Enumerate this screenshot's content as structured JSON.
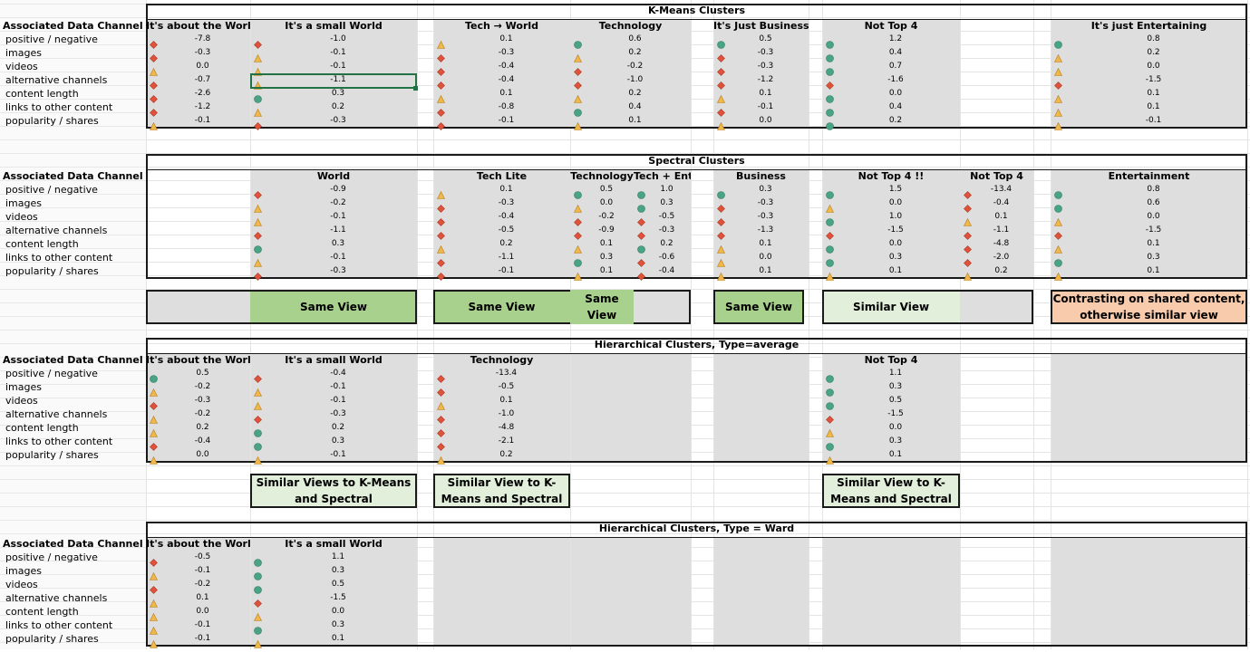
{
  "row_labels": [
    "positive / negative",
    "images",
    "videos",
    "alternative channels",
    "content length",
    "links to other content",
    "popularity / shares"
  ],
  "header_label": "Associated Data Channel",
  "icon_colors": {
    "circle": "#4aa383",
    "diamond": "#e0533a",
    "triangle": "#f0b74a"
  },
  "sections": [
    {
      "id": "kmeans",
      "title": "K-Means Clusters",
      "columns": [
        {
          "id": "k1",
          "header": "It's about the World",
          "icons": [
            "d",
            "d",
            "t",
            "d",
            "d",
            "d",
            "t"
          ],
          "values": [
            "-7.8",
            "-0.3",
            "0.0",
            "-0.7",
            "-2.6",
            "-1.2",
            "-0.1"
          ]
        },
        {
          "id": "k2",
          "header": "It's a small World",
          "icons": [
            "d",
            "t",
            "t",
            "t",
            "c",
            "t",
            "d"
          ],
          "values": [
            "-1.0",
            "-0.1",
            "-0.1",
            "-1.1",
            "0.3",
            "0.2",
            "-0.3"
          ]
        },
        {
          "id": "k3",
          "header": "Tech → World",
          "icons": [
            "t",
            "d",
            "d",
            "d",
            "t",
            "d",
            "d"
          ],
          "values": [
            "0.1",
            "-0.3",
            "-0.4",
            "-0.4",
            "0.1",
            "-0.8",
            "-0.1"
          ]
        },
        {
          "id": "k4",
          "header": "Technology",
          "icons": [
            "c",
            "t",
            "d",
            "d",
            "t",
            "c",
            "t"
          ],
          "values": [
            "0.6",
            "0.2",
            "-0.2",
            "-1.0",
            "0.2",
            "0.4",
            "0.1"
          ]
        },
        {
          "id": "k5",
          "header": "It's Just Business",
          "icons": [
            "c",
            "d",
            "d",
            "d",
            "t",
            "d",
            "t"
          ],
          "values": [
            "0.5",
            "-0.3",
            "-0.3",
            "-1.2",
            "0.1",
            "-0.1",
            "0.0"
          ]
        },
        {
          "id": "k6",
          "header": "Not Top 4",
          "icons": [
            "c",
            "c",
            "c",
            "d",
            "c",
            "c",
            "c"
          ],
          "values": [
            "1.2",
            "0.4",
            "0.7",
            "-1.6",
            "0.0",
            "0.4",
            "0.2"
          ]
        },
        {
          "id": "k7",
          "header": "It's just Entertaining",
          "icons": [
            "c",
            "t",
            "t",
            "d",
            "t",
            "t",
            "t"
          ],
          "values": [
            "0.8",
            "0.2",
            "0.0",
            "-1.5",
            "0.1",
            "0.1",
            "-0.1"
          ]
        }
      ]
    },
    {
      "id": "spectral",
      "title": "Spectral Clusters",
      "columns": [
        {
          "id": "s2",
          "header": "World",
          "icons": [
            "d",
            "t",
            "t",
            "d",
            "c",
            "t",
            "d"
          ],
          "values": [
            "-0.9",
            "-0.2",
            "-0.1",
            "-1.1",
            "0.3",
            "-0.1",
            "-0.3"
          ]
        },
        {
          "id": "s3",
          "header": "Tech Lite",
          "icons": [
            "t",
            "d",
            "d",
            "d",
            "t",
            "d",
            "d"
          ],
          "values": [
            "0.1",
            "-0.3",
            "-0.4",
            "-0.5",
            "0.2",
            "-1.1",
            "-0.1"
          ]
        },
        {
          "id": "s4",
          "header": "Technology",
          "icons": [
            "c",
            "t",
            "d",
            "d",
            "t",
            "c",
            "t"
          ],
          "values": [
            "0.5",
            "0.0",
            "-0.2",
            "-0.9",
            "0.1",
            "0.3",
            "0.1"
          ]
        },
        {
          "id": "s4b",
          "header": "Tech + Ent",
          "icons": [
            "c",
            "c",
            "d",
            "d",
            "c",
            "d",
            "d"
          ],
          "values": [
            "1.0",
            "0.3",
            "-0.5",
            "-0.3",
            "0.2",
            "-0.6",
            "-0.4"
          ]
        },
        {
          "id": "s5",
          "header": "Business",
          "icons": [
            "c",
            "d",
            "d",
            "d",
            "t",
            "t",
            "t"
          ],
          "values": [
            "0.3",
            "-0.3",
            "-0.3",
            "-1.3",
            "0.1",
            "0.0",
            "0.1"
          ]
        },
        {
          "id": "s6",
          "header": "Not Top 4 !!",
          "icons": [
            "c",
            "t",
            "c",
            "d",
            "c",
            "c",
            "t"
          ],
          "values": [
            "1.5",
            "0.0",
            "1.0",
            "-1.5",
            "0.0",
            "0.3",
            "0.1"
          ]
        },
        {
          "id": "s6b",
          "header": "Not Top 4",
          "icons": [
            "d",
            "d",
            "t",
            "d",
            "d",
            "d",
            "t"
          ],
          "values": [
            "-13.4",
            "-0.4",
            "0.1",
            "-1.1",
            "-4.8",
            "-2.0",
            "0.2"
          ]
        },
        {
          "id": "s7",
          "header": "Entertainment",
          "icons": [
            "c",
            "c",
            "t",
            "d",
            "t",
            "c",
            "t"
          ],
          "values": [
            "0.8",
            "0.6",
            "0.0",
            "-1.5",
            "0.1",
            "0.3",
            "0.1"
          ]
        }
      ]
    },
    {
      "id": "hier_avg",
      "title": "Hierarchical Clusters, Type=average",
      "columns": [
        {
          "id": "h1",
          "header": "It's about the World",
          "icons": [
            "c",
            "t",
            "d",
            "t",
            "t",
            "d",
            "t"
          ],
          "values": [
            "0.5",
            "-0.2",
            "-0.3",
            "-0.2",
            "0.2",
            "-0.4",
            "0.0"
          ]
        },
        {
          "id": "h2",
          "header": "It's a small World",
          "icons": [
            "d",
            "t",
            "t",
            "d",
            "c",
            "c",
            "t"
          ],
          "values": [
            "-0.4",
            "-0.1",
            "-0.1",
            "-0.3",
            "0.2",
            "0.3",
            "-0.1"
          ]
        },
        {
          "id": "h3",
          "header": "Technology",
          "icons": [
            "d",
            "d",
            "t",
            "d",
            "d",
            "d",
            "t"
          ],
          "values": [
            "-13.4",
            "-0.5",
            "0.1",
            "-1.0",
            "-4.8",
            "-2.1",
            "0.2"
          ]
        },
        {
          "id": "h6",
          "header": "Not Top 4",
          "icons": [
            "c",
            "c",
            "c",
            "d",
            "t",
            "c",
            "t"
          ],
          "values": [
            "1.1",
            "0.3",
            "0.5",
            "-1.5",
            "0.0",
            "0.3",
            "0.1"
          ]
        }
      ]
    },
    {
      "id": "hier_ward",
      "title": "Hierarchical Clusters, Type = Ward",
      "columns": [
        {
          "id": "w1",
          "header": "It's about the World",
          "icons": [
            "d",
            "t",
            "d",
            "t",
            "t",
            "t",
            "t"
          ],
          "values": [
            "-0.5",
            "-0.1",
            "-0.2",
            "0.1",
            "0.0",
            "-0.1",
            "-0.1"
          ]
        },
        {
          "id": "w2",
          "header": "It's a small World",
          "icons": [
            "c",
            "c",
            "c",
            "d",
            "t",
            "c",
            "t"
          ],
          "values": [
            "1.1",
            "0.3",
            "0.5",
            "-1.5",
            "0.0",
            "0.3",
            "0.1"
          ]
        }
      ]
    }
  ],
  "view_boxes": [
    {
      "id": "v1",
      "text": "Same View",
      "color": "#a9d18e"
    },
    {
      "id": "v2",
      "text": "Same View",
      "color": "#a9d18e"
    },
    {
      "id": "v3",
      "text": "Same View",
      "color": "#a9d18e"
    },
    {
      "id": "v4",
      "text": "Same View",
      "color": "#a9d18e"
    },
    {
      "id": "v5",
      "text": "Similar View",
      "color": "#e2efda"
    },
    {
      "id": "v6",
      "text": "Contrasting on shared content, otherwise similar view",
      "color": "#f8cbad"
    },
    {
      "id": "v7",
      "text": "Similar Views to K-Means and Spectral",
      "color": "#e2efda"
    },
    {
      "id": "v8",
      "text": "Similar View to K-Means and Spectral",
      "color": "#e2efda"
    },
    {
      "id": "v9",
      "text": "Similar View to K-Means and Spectral",
      "color": "#e2efda"
    }
  ]
}
